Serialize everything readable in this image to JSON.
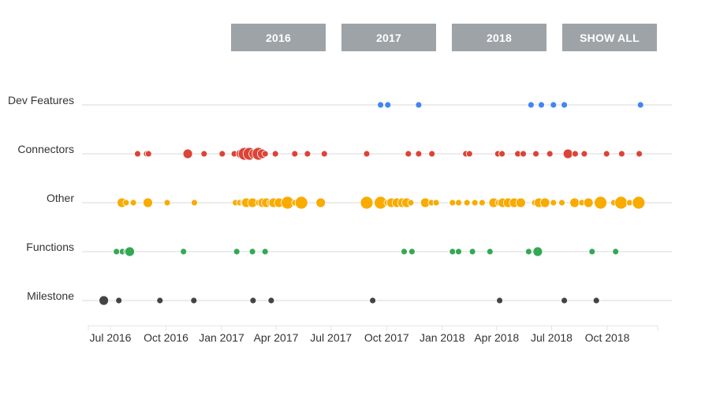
{
  "filters": {
    "btn_2016": "2016",
    "btn_2017": "2017",
    "btn_2018": "2018",
    "btn_all": "SHOW ALL"
  },
  "chart_data": {
    "type": "scatter",
    "title": "",
    "xlabel": "",
    "ylabel": "",
    "x_range": [
      "2016-06-01",
      "2018-12-31"
    ],
    "x_ticks": [
      "Jul 2016",
      "Oct 2016",
      "Jan 2017",
      "Apr 2017",
      "Jul 2017",
      "Oct 2017",
      "Jan 2018",
      "Apr 2018",
      "Jul 2018",
      "Oct 2018"
    ],
    "x_tick_dates": [
      "2016-07-01",
      "2016-10-01",
      "2017-01-01",
      "2017-04-01",
      "2017-07-01",
      "2017-10-01",
      "2018-01-01",
      "2018-04-01",
      "2018-07-01",
      "2018-10-01"
    ],
    "categories": [
      "Dev Features",
      "Connectors",
      "Other",
      "Functions",
      "Milestone"
    ],
    "grid": true,
    "legend": "none",
    "series": [
      {
        "category": "Dev Features",
        "color": "#4285f4",
        "points": [
          {
            "x": "2017-09-21",
            "size": 1
          },
          {
            "x": "2017-10-03",
            "size": 1
          },
          {
            "x": "2017-11-23",
            "size": 1
          },
          {
            "x": "2018-05-28",
            "size": 1
          },
          {
            "x": "2018-06-14",
            "size": 1
          },
          {
            "x": "2018-07-04",
            "size": 1
          },
          {
            "x": "2018-07-22",
            "size": 1
          },
          {
            "x": "2018-11-25",
            "size": 1
          }
        ]
      },
      {
        "category": "Connectors",
        "color": "#db4437",
        "points": [
          {
            "x": "2016-08-15",
            "size": 1
          },
          {
            "x": "2016-08-30",
            "size": 1
          },
          {
            "x": "2016-09-02",
            "size": 1
          },
          {
            "x": "2016-11-06",
            "size": 2
          },
          {
            "x": "2016-12-03",
            "size": 1
          },
          {
            "x": "2017-01-02",
            "size": 1
          },
          {
            "x": "2017-01-22",
            "size": 1
          },
          {
            "x": "2017-02-02",
            "size": 2
          },
          {
            "x": "2017-02-08",
            "size": 3
          },
          {
            "x": "2017-02-16",
            "size": 3
          },
          {
            "x": "2017-02-23",
            "size": 2
          },
          {
            "x": "2017-03-03",
            "size": 3
          },
          {
            "x": "2017-03-09",
            "size": 2
          },
          {
            "x": "2017-03-14",
            "size": 1
          },
          {
            "x": "2017-03-31",
            "size": 1
          },
          {
            "x": "2017-05-02",
            "size": 1
          },
          {
            "x": "2017-05-23",
            "size": 1
          },
          {
            "x": "2017-06-20",
            "size": 1
          },
          {
            "x": "2017-08-29",
            "size": 1
          },
          {
            "x": "2017-11-06",
            "size": 1
          },
          {
            "x": "2017-11-23",
            "size": 1
          },
          {
            "x": "2017-12-15",
            "size": 1
          },
          {
            "x": "2018-02-09",
            "size": 1
          },
          {
            "x": "2018-02-15",
            "size": 1
          },
          {
            "x": "2018-04-03",
            "size": 1
          },
          {
            "x": "2018-04-10",
            "size": 1
          },
          {
            "x": "2018-05-06",
            "size": 1
          },
          {
            "x": "2018-05-15",
            "size": 1
          },
          {
            "x": "2018-06-05",
            "size": 1
          },
          {
            "x": "2018-06-28",
            "size": 1
          },
          {
            "x": "2018-07-28",
            "size": 2
          },
          {
            "x": "2018-08-09",
            "size": 1
          },
          {
            "x": "2018-08-24",
            "size": 1
          },
          {
            "x": "2018-09-30",
            "size": 1
          },
          {
            "x": "2018-10-25",
            "size": 1
          },
          {
            "x": "2018-11-23",
            "size": 1
          }
        ]
      },
      {
        "category": "Other",
        "color": "#f9ab00",
        "points": [
          {
            "x": "2016-07-20",
            "size": 2
          },
          {
            "x": "2016-07-27",
            "size": 1
          },
          {
            "x": "2016-08-08",
            "size": 1
          },
          {
            "x": "2016-09-01",
            "size": 2
          },
          {
            "x": "2016-10-03",
            "size": 1
          },
          {
            "x": "2016-11-17",
            "size": 1
          },
          {
            "x": "2017-01-24",
            "size": 1
          },
          {
            "x": "2017-01-31",
            "size": 1
          },
          {
            "x": "2017-02-06",
            "size": 1
          },
          {
            "x": "2017-02-11",
            "size": 2
          },
          {
            "x": "2017-02-21",
            "size": 2
          },
          {
            "x": "2017-03-03",
            "size": 1
          },
          {
            "x": "2017-03-10",
            "size": 2
          },
          {
            "x": "2017-03-16",
            "size": 2
          },
          {
            "x": "2017-03-22",
            "size": 1
          },
          {
            "x": "2017-03-28",
            "size": 2
          },
          {
            "x": "2017-04-06",
            "size": 2
          },
          {
            "x": "2017-04-20",
            "size": 3
          },
          {
            "x": "2017-05-02",
            "size": 1
          },
          {
            "x": "2017-05-13",
            "size": 3
          },
          {
            "x": "2017-06-14",
            "size": 2
          },
          {
            "x": "2017-08-29",
            "size": 3
          },
          {
            "x": "2017-09-21",
            "size": 3
          },
          {
            "x": "2017-10-02",
            "size": 1
          },
          {
            "x": "2017-10-09",
            "size": 2
          },
          {
            "x": "2017-10-18",
            "size": 2
          },
          {
            "x": "2017-10-27",
            "size": 2
          },
          {
            "x": "2017-11-03",
            "size": 2
          },
          {
            "x": "2017-11-10",
            "size": 1
          },
          {
            "x": "2017-12-04",
            "size": 2
          },
          {
            "x": "2017-12-14",
            "size": 1
          },
          {
            "x": "2017-12-22",
            "size": 1
          },
          {
            "x": "2018-01-18",
            "size": 1
          },
          {
            "x": "2018-01-28",
            "size": 1
          },
          {
            "x": "2018-02-11",
            "size": 1
          },
          {
            "x": "2018-02-24",
            "size": 1
          },
          {
            "x": "2018-03-08",
            "size": 1
          },
          {
            "x": "2018-03-27",
            "size": 2
          },
          {
            "x": "2018-04-04",
            "size": 1
          },
          {
            "x": "2018-04-11",
            "size": 2
          },
          {
            "x": "2018-04-20",
            "size": 2
          },
          {
            "x": "2018-04-30",
            "size": 2
          },
          {
            "x": "2018-05-11",
            "size": 2
          },
          {
            "x": "2018-06-03",
            "size": 1
          },
          {
            "x": "2018-06-10",
            "size": 2
          },
          {
            "x": "2018-06-20",
            "size": 2
          },
          {
            "x": "2018-07-04",
            "size": 1
          },
          {
            "x": "2018-07-18",
            "size": 1
          },
          {
            "x": "2018-08-08",
            "size": 2
          },
          {
            "x": "2018-08-20",
            "size": 1
          },
          {
            "x": "2018-08-31",
            "size": 2
          },
          {
            "x": "2018-09-20",
            "size": 3
          },
          {
            "x": "2018-10-12",
            "size": 1
          },
          {
            "x": "2018-10-24",
            "size": 3
          },
          {
            "x": "2018-11-07",
            "size": 1
          },
          {
            "x": "2018-11-16",
            "size": 1
          },
          {
            "x": "2018-11-22",
            "size": 3
          }
        ]
      },
      {
        "category": "Functions",
        "color": "#34a853",
        "points": [
          {
            "x": "2016-07-11",
            "size": 1
          },
          {
            "x": "2016-07-21",
            "size": 1
          },
          {
            "x": "2016-07-28",
            "size": 1
          },
          {
            "x": "2016-08-02",
            "size": 2
          },
          {
            "x": "2016-10-30",
            "size": 1
          },
          {
            "x": "2017-01-26",
            "size": 1
          },
          {
            "x": "2017-02-21",
            "size": 1
          },
          {
            "x": "2017-03-14",
            "size": 1
          },
          {
            "x": "2017-10-30",
            "size": 1
          },
          {
            "x": "2017-11-12",
            "size": 1
          },
          {
            "x": "2018-01-18",
            "size": 1
          },
          {
            "x": "2018-01-28",
            "size": 1
          },
          {
            "x": "2018-02-20",
            "size": 1
          },
          {
            "x": "2018-03-21",
            "size": 1
          },
          {
            "x": "2018-05-24",
            "size": 1
          },
          {
            "x": "2018-06-08",
            "size": 2
          },
          {
            "x": "2018-09-06",
            "size": 1
          },
          {
            "x": "2018-10-15",
            "size": 1
          }
        ]
      },
      {
        "category": "Milestone",
        "color": "#444444",
        "points": [
          {
            "x": "2016-06-20",
            "size": 2
          },
          {
            "x": "2016-07-15",
            "size": 1
          },
          {
            "x": "2016-09-21",
            "size": 1
          },
          {
            "x": "2016-11-16",
            "size": 1
          },
          {
            "x": "2017-02-22",
            "size": 1
          },
          {
            "x": "2017-03-24",
            "size": 1
          },
          {
            "x": "2017-09-08",
            "size": 1
          },
          {
            "x": "2018-04-06",
            "size": 1
          },
          {
            "x": "2018-07-22",
            "size": 1
          },
          {
            "x": "2018-09-13",
            "size": 1
          }
        ]
      }
    ]
  }
}
